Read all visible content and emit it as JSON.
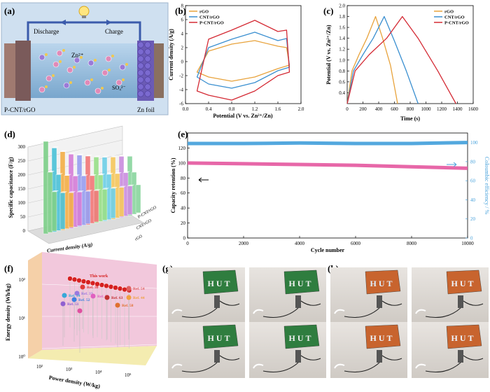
{
  "panel_labels": {
    "a": "(a)",
    "b": "(b)",
    "c": "(c)",
    "d": "(d)",
    "e": "(e)",
    "f": "(f)",
    "g": "(g)",
    "h": "(h)"
  },
  "panel_a": {
    "discharge": "Discharge",
    "charge": "Charge",
    "zn_ion": "Zn²⁺",
    "so4_ion": "SO₄²⁻",
    "cathode_label": "P-CNT/rGO",
    "anode_label": "Zn foil",
    "colors": {
      "electrolyte": "#8fb8d8",
      "cathode": "#7a5a5a",
      "anode": "#6b5bb5",
      "arrow": "#3b5bab"
    }
  },
  "chart_data": [
    {
      "id": "b",
      "type": "line",
      "xlabel": "Potential  (V vs. Zn²⁺/Zn)",
      "ylabel": "Current density (A/g)",
      "xlim": [
        0.0,
        2.0
      ],
      "ylim": [
        -6,
        8
      ],
      "xticks": [
        "0.0",
        "0.4",
        "0.8",
        "1.2",
        "1.6",
        "2.0"
      ],
      "yticks": [
        "-6",
        "-4",
        "-2",
        "0",
        "2",
        "4",
        "6",
        "8"
      ],
      "series": [
        {
          "name": "rGO",
          "color": "#e8a33c",
          "x": [
            0.2,
            0.4,
            0.8,
            1.2,
            1.6,
            1.75,
            1.8,
            1.6,
            1.2,
            0.8,
            0.4,
            0.2
          ],
          "y": [
            -1.5,
            1.5,
            2.5,
            3.0,
            2.2,
            2.0,
            -0.5,
            -1.0,
            -2.2,
            -2.8,
            -2.2,
            -1.5
          ]
        },
        {
          "name": "CNT/rGO",
          "color": "#3a8fd0",
          "x": [
            0.2,
            0.4,
            0.8,
            1.2,
            1.6,
            1.75,
            1.8,
            1.6,
            1.2,
            0.8,
            0.4,
            0.2
          ],
          "y": [
            -2.2,
            2.0,
            3.2,
            4.2,
            3.0,
            3.3,
            -0.8,
            -1.3,
            -3.0,
            -3.8,
            -3.2,
            -2.2
          ]
        },
        {
          "name": "P-CNT/rGO",
          "color": "#d42a34",
          "x": [
            0.2,
            0.4,
            0.8,
            1.2,
            1.6,
            1.75,
            1.8,
            1.6,
            1.2,
            0.8,
            0.4,
            0.2
          ],
          "y": [
            -4.2,
            3.2,
            4.5,
            5.9,
            4.3,
            4.5,
            -1.5,
            -2.0,
            -4.2,
            -5.5,
            -4.8,
            -4.2
          ]
        }
      ]
    },
    {
      "id": "c",
      "type": "line",
      "xlabel": "Time (s)",
      "ylabel": "Potential (V vs. Zn²⁺/Zn)",
      "xlim": [
        0,
        1600
      ],
      "ylim": [
        0.2,
        2.0
      ],
      "xticks": [
        "0",
        "200",
        "400",
        "600",
        "800",
        "1000",
        "1200",
        "1400",
        "1600"
      ],
      "yticks": [
        "0.4",
        "0.6",
        "0.8",
        "1.0",
        "1.2",
        "1.4",
        "1.6",
        "1.8",
        "2.0"
      ],
      "series": [
        {
          "name": "rGO",
          "color": "#e8a33c",
          "x": [
            0,
            60,
            150,
            250,
            360,
            450,
            550,
            640
          ],
          "y": [
            0.2,
            0.8,
            1.1,
            1.4,
            1.8,
            1.4,
            0.9,
            0.2
          ]
        },
        {
          "name": "CNT/rGO",
          "color": "#3a8fd0",
          "x": [
            0,
            80,
            200,
            330,
            470,
            600,
            750,
            900
          ],
          "y": [
            0.2,
            0.8,
            1.1,
            1.4,
            1.8,
            1.35,
            0.8,
            0.2
          ]
        },
        {
          "name": "P-CNT/rGO",
          "color": "#d42a34",
          "x": [
            0,
            100,
            280,
            500,
            700,
            900,
            1150,
            1380
          ],
          "y": [
            0.2,
            0.8,
            1.1,
            1.4,
            1.8,
            1.4,
            0.8,
            0.2
          ]
        }
      ]
    },
    {
      "id": "d",
      "type": "bar",
      "ylabel": "Specific capacitance (F/g)",
      "xlabel": "Current density (A/g)",
      "yticks": [
        "0",
        "50",
        "100",
        "150",
        "200",
        "250",
        "300"
      ],
      "row_labels": [
        "P-CNT/rGO",
        "CNT/rGO",
        "rGO"
      ],
      "series": [
        {
          "name": "P-CNT/rGO",
          "values": [
            330,
            300,
            280,
            265,
            255,
            245,
            235,
            228,
            222,
            218,
            212
          ]
        },
        {
          "name": "CNT/rGO",
          "values": [
            215,
            200,
            190,
            182,
            176,
            170,
            166,
            162,
            158,
            155,
            150
          ]
        },
        {
          "name": "rGO",
          "values": [
            140,
            130,
            124,
            120,
            116,
            112,
            110,
            107,
            104,
            102,
            100
          ]
        }
      ],
      "bar_colors": [
        "#7fd08a",
        "#4fc3d8",
        "#f4b04a",
        "#d680d8",
        "#9aa0f0",
        "#f27a7a",
        "#9ae08a",
        "#70d0e8",
        "#f6c860",
        "#cc90e0",
        "#8cd6a0"
      ]
    },
    {
      "id": "e",
      "type": "line",
      "xlabel": "Cycle number",
      "ylabel_left": "Capacity retention (%)",
      "ylabel_right": "Coloumbic efficiency / %",
      "xlim": [
        0,
        10000
      ],
      "ylim_left": [
        0,
        140
      ],
      "ylim_right": [
        0,
        110
      ],
      "xticks": [
        "0",
        "2000",
        "4000",
        "6000",
        "8000",
        "10000"
      ],
      "yticks_left": [
        "0",
        "20",
        "40",
        "60",
        "80",
        "100",
        "120"
      ],
      "yticks_right": [
        "0",
        "20",
        "40",
        "60",
        "80",
        "100"
      ],
      "series": [
        {
          "name": "Capacity retention",
          "color": "#e65fa3",
          "axis": "left",
          "x": [
            0,
            2000,
            4000,
            6000,
            8000,
            10000
          ],
          "y": [
            100,
            99,
            98,
            97,
            95,
            93
          ]
        },
        {
          "name": "Coulombic efficiency",
          "color": "#4aa3dc",
          "axis": "right",
          "x": [
            0,
            2000,
            4000,
            6000,
            8000,
            10000
          ],
          "y": [
            99,
            99,
            99.5,
            99,
            99,
            100
          ]
        }
      ]
    },
    {
      "id": "f",
      "type": "scatter",
      "xlabel": "Power density (W/kg)",
      "ylabel": "Energy density (Wh/kg)",
      "xticks": [
        "10²",
        "10³",
        "10⁴",
        "10⁵"
      ],
      "yticks": [
        "10⁰",
        "10¹",
        "10²"
      ],
      "annotations": [
        "This work",
        "Ref. 30",
        "Ref. 33",
        "Ref. 34",
        "Ref. 54",
        "Ref. 55",
        "Ref. 51",
        "Ref. 52",
        "Ref. 63",
        "Ref. 44",
        "Ref. 58"
      ]
    }
  ],
  "panel_g": {
    "board_text": "HUT",
    "board_color": "#2f7d3f"
  },
  "panel_h": {
    "board_text": "HUT",
    "board_color": "#c8642e"
  }
}
